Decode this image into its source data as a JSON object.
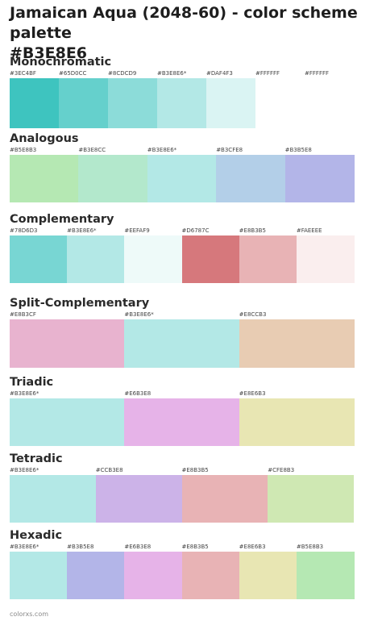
{
  "page": {
    "title_line1": "Jamaican Aqua (2048-60) - color scheme palette",
    "title_line2": "#B3E8E6",
    "footer": "colorxs.com"
  },
  "sections": [
    {
      "title": "Monochromatic",
      "colors": [
        {
          "label": "#3EC4BF",
          "hex": "#3EC4BF"
        },
        {
          "label": "#65D0CC",
          "hex": "#65D0CC"
        },
        {
          "label": "#8CDCD9",
          "hex": "#8CDCD9"
        },
        {
          "label": "#B3E8E6*",
          "hex": "#B3E8E6"
        },
        {
          "label": "#DAF4F3",
          "hex": "#DAF4F3"
        },
        {
          "label": "#FFFFFF",
          "hex": "#FFFFFF"
        },
        {
          "label": "#FFFFFF",
          "hex": "#FFFFFF"
        }
      ]
    },
    {
      "title": "Analogous",
      "colors": [
        {
          "label": "#B5E8B3",
          "hex": "#B5E8B3"
        },
        {
          "label": "#B3E8CC",
          "hex": "#B3E8CC"
        },
        {
          "label": "#B3E8E6*",
          "hex": "#B3E8E6"
        },
        {
          "label": "#B3CFE8",
          "hex": "#B3CFE8"
        },
        {
          "label": "#B3B5E8",
          "hex": "#B3B5E8"
        }
      ]
    },
    {
      "title": "Complementary",
      "colors": [
        {
          "label": "#78D6D3",
          "hex": "#78D6D3"
        },
        {
          "label": "#B3E8E6*",
          "hex": "#B3E8E6"
        },
        {
          "label": "#EEFAF9",
          "hex": "#EEFAF9"
        },
        {
          "label": "#D6787C",
          "hex": "#D6787C"
        },
        {
          "label": "#E8B3B5",
          "hex": "#E8B3B5"
        },
        {
          "label": "#FAEEEE",
          "hex": "#FAEEEE"
        }
      ]
    },
    {
      "title": "Split-Complementary",
      "colors": [
        {
          "label": "#E8B3CF",
          "hex": "#E8B3CF"
        },
        {
          "label": "#B3E8E6*",
          "hex": "#B3E8E6"
        },
        {
          "label": "#E8CCB3",
          "hex": "#E8CCB3"
        }
      ]
    },
    {
      "title": "Triadic",
      "colors": [
        {
          "label": "#B3E8E6*",
          "hex": "#B3E8E6"
        },
        {
          "label": "#E6B3E8",
          "hex": "#E6B3E8"
        },
        {
          "label": "#E8E6B3",
          "hex": "#E8E6B3"
        }
      ]
    },
    {
      "title": "Tetradic",
      "colors": [
        {
          "label": "#B3E8E6*",
          "hex": "#B3E8E6"
        },
        {
          "label": "#CCB3E8",
          "hex": "#CCB3E8"
        },
        {
          "label": "#E8B3B5",
          "hex": "#E8B3B5"
        },
        {
          "label": "#CFE8B3",
          "hex": "#CFE8B3"
        }
      ]
    },
    {
      "title": "Hexadic",
      "colors": [
        {
          "label": "#B3E8E6*",
          "hex": "#B3E8E6"
        },
        {
          "label": "#B3B5E8",
          "hex": "#B3B5E8"
        },
        {
          "label": "#E6B3E8",
          "hex": "#E6B3E8"
        },
        {
          "label": "#E8B3B5",
          "hex": "#E8B3B5"
        },
        {
          "label": "#E8E6B3",
          "hex": "#E8E6B3"
        },
        {
          "label": "#B5E8B3",
          "hex": "#B5E8B3"
        }
      ]
    }
  ]
}
